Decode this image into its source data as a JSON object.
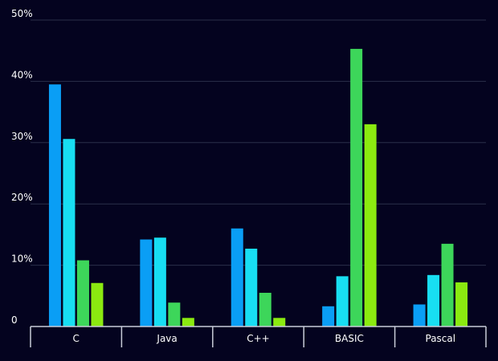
{
  "chart_data": {
    "type": "bar",
    "categories": [
      "C",
      "Java",
      "C++",
      "BASIC",
      "Pascal"
    ],
    "series": [
      {
        "values": [
          39.5,
          14.2,
          16.0,
          3.3,
          3.6
        ],
        "color": "#0a9ef5"
      },
      {
        "values": [
          30.6,
          14.5,
          12.7,
          8.2,
          8.4
        ],
        "color": "#18def2"
      },
      {
        "values": [
          10.8,
          3.9,
          5.5,
          45.3,
          13.5
        ],
        "color": "#3dd65a"
      },
      {
        "values": [
          7.1,
          1.4,
          1.4,
          33.0,
          7.2
        ],
        "color": "#8bea10"
      }
    ],
    "yticks": [
      "0",
      "10%",
      "20%",
      "30%",
      "40%",
      "50%"
    ],
    "ytick_values": [
      0,
      10,
      20,
      30,
      40,
      50
    ],
    "ylim": [
      0,
      50
    ],
    "grid": true,
    "legend": "none",
    "title": "",
    "xlabel": "",
    "ylabel": ""
  }
}
